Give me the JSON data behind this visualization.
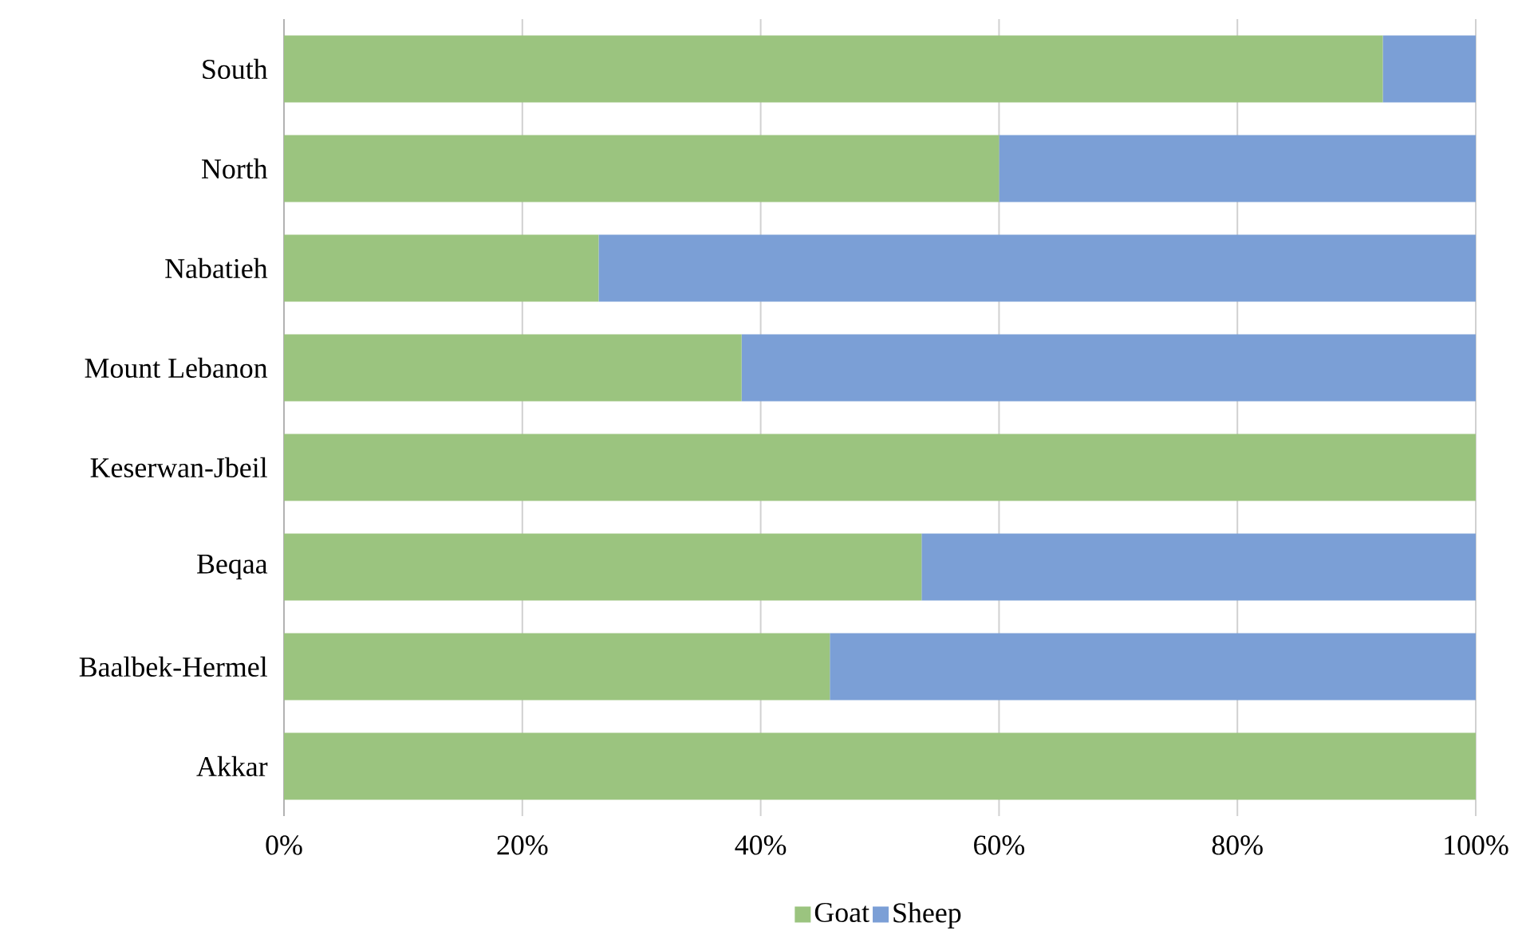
{
  "chart_data": {
    "type": "bar",
    "orientation": "horizontal",
    "stacked": true,
    "categories": [
      "South",
      "North",
      "Nabatieh",
      "Mount Lebanon",
      "Keserwan-Jbeil",
      "Beqaa",
      "Baalbek-Hermel",
      "Akkar"
    ],
    "series": [
      {
        "name": "Goat",
        "color": "#9bc47f",
        "values": [
          92.2,
          60.0,
          26.4,
          38.4,
          100,
          53.5,
          45.8,
          100
        ]
      },
      {
        "name": "Sheep",
        "color": "#7b9fd6",
        "values": [
          7.8,
          40.0,
          73.6,
          61.6,
          0,
          46.5,
          54.2,
          0
        ]
      }
    ],
    "xlim": [
      0,
      100
    ],
    "xticks": [
      {
        "value": 0,
        "label": "0%"
      },
      {
        "value": 20,
        "label": "20%"
      },
      {
        "value": 40,
        "label": "40%"
      },
      {
        "value": 60,
        "label": "60%"
      },
      {
        "value": 80,
        "label": "80%"
      },
      {
        "value": 100,
        "label": "100%"
      }
    ],
    "grid": "x",
    "legend": "bottom"
  }
}
